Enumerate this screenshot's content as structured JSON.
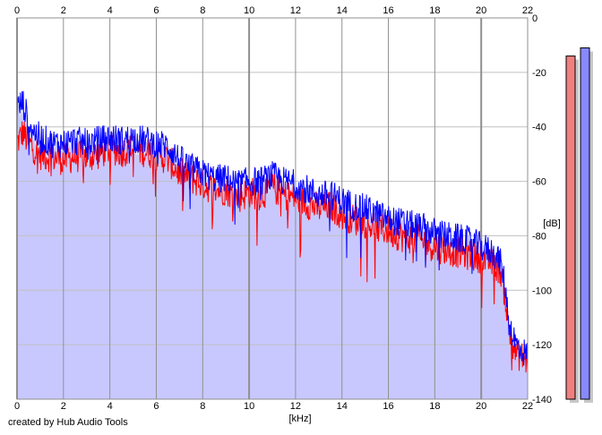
{
  "chart_data": {
    "type": "area",
    "xlabel": "[kHz]",
    "ylabel": "[dB]",
    "xlim": [
      0,
      22
    ],
    "ylim": [
      -140,
      0
    ],
    "x_ticks": [
      0,
      2,
      4,
      6,
      8,
      10,
      12,
      14,
      16,
      18,
      20,
      22
    ],
    "y_ticks": [
      0,
      -20,
      -40,
      -60,
      -80,
      -100,
      -120,
      -140
    ],
    "grid": true,
    "area_fill": "#c8c8ff",
    "series": [
      {
        "color": "#ff0000",
        "x": [
          0.0,
          0.25,
          0.5,
          0.75,
          1.0,
          1.5,
          2.0,
          2.5,
          3.0,
          3.5,
          4.0,
          4.5,
          5.0,
          5.5,
          6.0,
          6.5,
          7.0,
          7.5,
          8.0,
          8.5,
          9.0,
          9.5,
          10.0,
          10.5,
          11.0,
          11.5,
          12.0,
          12.5,
          13.0,
          13.5,
          14.0,
          14.5,
          15.0,
          15.5,
          16.0,
          16.5,
          17.0,
          17.5,
          18.0,
          18.5,
          19.0,
          19.5,
          20.0,
          20.5,
          20.8,
          21.0,
          21.2,
          21.5,
          22.0
        ],
        "y": [
          -46,
          -42,
          -46,
          -48,
          -50,
          -51,
          -52,
          -51,
          -51,
          -50,
          -48,
          -49,
          -48,
          -49,
          -50,
          -52,
          -57,
          -59,
          -61,
          -63,
          -63,
          -66,
          -64,
          -65,
          -62,
          -65,
          -66,
          -68,
          -70,
          -69,
          -72,
          -74,
          -75,
          -77,
          -78,
          -80,
          -81,
          -82,
          -84,
          -85,
          -86,
          -87,
          -88,
          -90,
          -92,
          -100,
          -115,
          -123,
          -126
        ]
      },
      {
        "color": "#0000ff",
        "x": [
          0.0,
          0.25,
          0.5,
          0.75,
          1.0,
          1.5,
          2.0,
          2.5,
          3.0,
          3.5,
          4.0,
          4.5,
          5.0,
          5.5,
          6.0,
          6.5,
          7.0,
          7.5,
          8.0,
          8.5,
          9.0,
          9.5,
          10.0,
          10.5,
          11.0,
          11.5,
          12.0,
          12.5,
          13.0,
          13.5,
          14.0,
          14.5,
          15.0,
          15.5,
          16.0,
          16.5,
          17.0,
          17.5,
          18.0,
          18.5,
          19.0,
          19.5,
          20.0,
          20.5,
          20.8,
          21.0,
          21.2,
          21.5,
          22.0
        ],
        "y": [
          -33,
          -31,
          -38,
          -42,
          -44,
          -46,
          -46,
          -45,
          -46,
          -45,
          -44,
          -45,
          -44,
          -45,
          -46,
          -47,
          -52,
          -55,
          -57,
          -59,
          -59,
          -61,
          -60,
          -60,
          -58,
          -60,
          -61,
          -63,
          -65,
          -65,
          -67,
          -69,
          -70,
          -72,
          -74,
          -75,
          -76,
          -77,
          -79,
          -80,
          -81,
          -82,
          -84,
          -86,
          -89,
          -97,
          -112,
          -120,
          -124
        ]
      }
    ],
    "level_meters": [
      {
        "color": "#f08080",
        "value": -14
      },
      {
        "color": "#8888ff",
        "value": -11
      }
    ]
  },
  "footer": {
    "credit": "created by Hub Audio Tools"
  }
}
